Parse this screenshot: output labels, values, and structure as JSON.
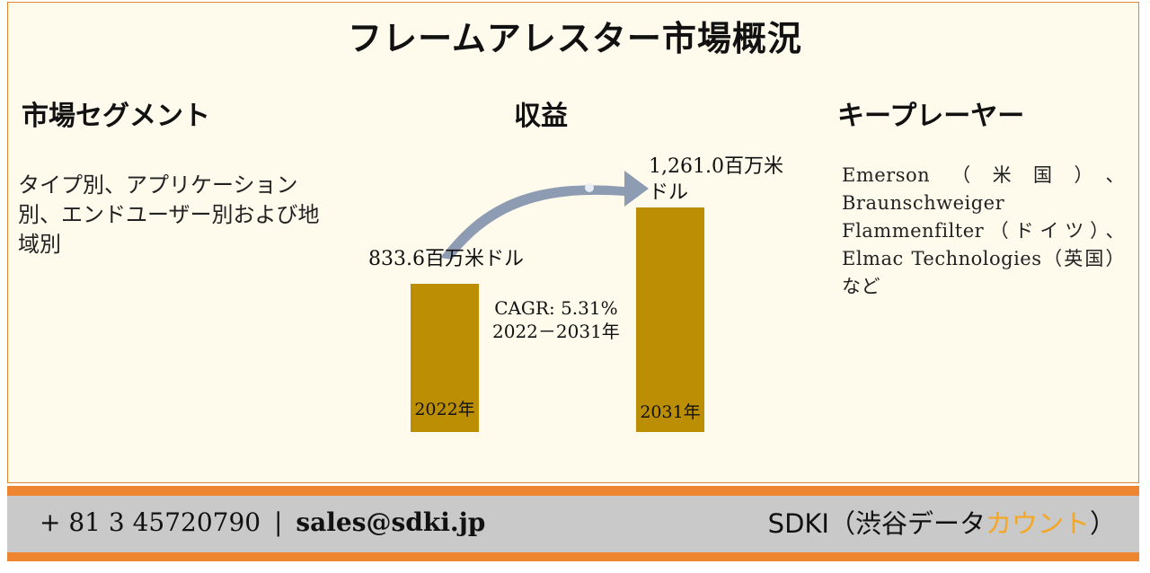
{
  "title": "フレームアレスター市場概況",
  "segments": {
    "heading": "市場セグメント",
    "text": "タイプ別、アプリケーション別、エンドユーザー別および地域別"
  },
  "revenue": {
    "heading": "収益",
    "cagr_line1": "CAGR: 5.31%",
    "cagr_line2": "2022－2031年"
  },
  "players": {
    "heading": "キープレーヤー",
    "text": "Emerson（米国）、Braunschweiger Flammenfilter（ドイツ）、Elmac Technologies（英国）など"
  },
  "chart_data": {
    "type": "bar",
    "categories": [
      "2022年",
      "2031年"
    ],
    "values": [
      833.6,
      1261.0
    ],
    "value_labels": [
      "833.6百万米ドル",
      "1,261.0百万米ドル"
    ],
    "bar_color": "#bb8e04",
    "arrow_color": "#8e9cb3"
  },
  "footer": {
    "phone": "+ 81 3 45720790",
    "separator": "|",
    "email": "sales@sdki.jp",
    "brand_prefix": "SDKI（渋谷データ",
    "brand_accent": "カウント",
    "brand_suffix": "）"
  },
  "colors": {
    "frame_border": "#e0852e",
    "background": "#fefaec",
    "footer_band": "#ee8530",
    "footer_inner": "#c9c9c9",
    "brand_accent": "#f5a623"
  }
}
